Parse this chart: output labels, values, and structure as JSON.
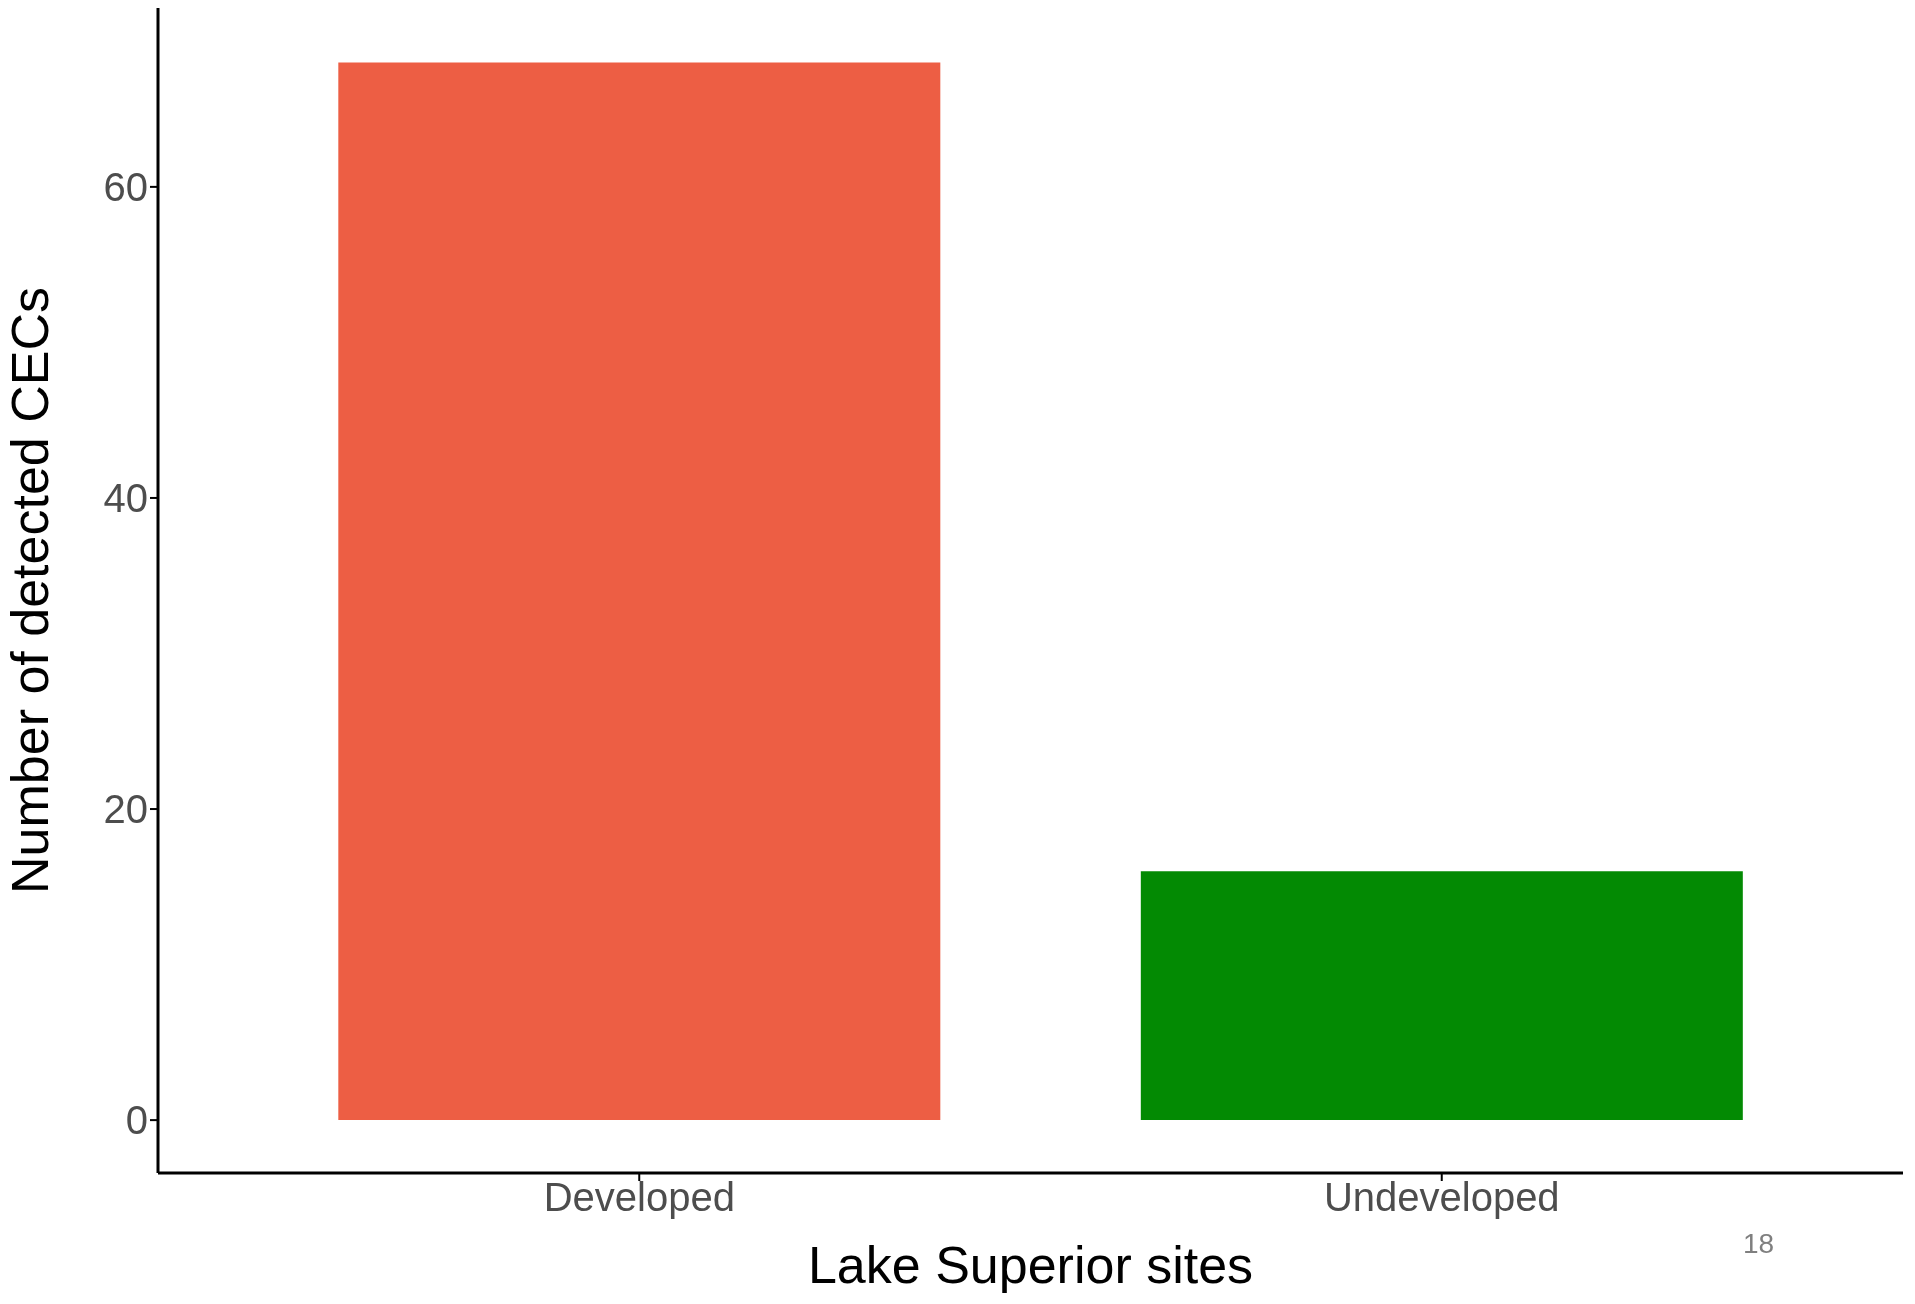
{
  "chart_data": {
    "type": "bar",
    "xlabel": "Lake Superior sites",
    "ylabel": "Number of detected CECs",
    "categories": [
      "Developed",
      "Undeveloped"
    ],
    "values": [
      68,
      16
    ],
    "colors": [
      "#ed5e44",
      "#038a03"
    ],
    "ylim": [
      -3.4,
      71.5
    ],
    "yticks": [
      0,
      20,
      40,
      60
    ],
    "annotations": [
      "18"
    ]
  }
}
